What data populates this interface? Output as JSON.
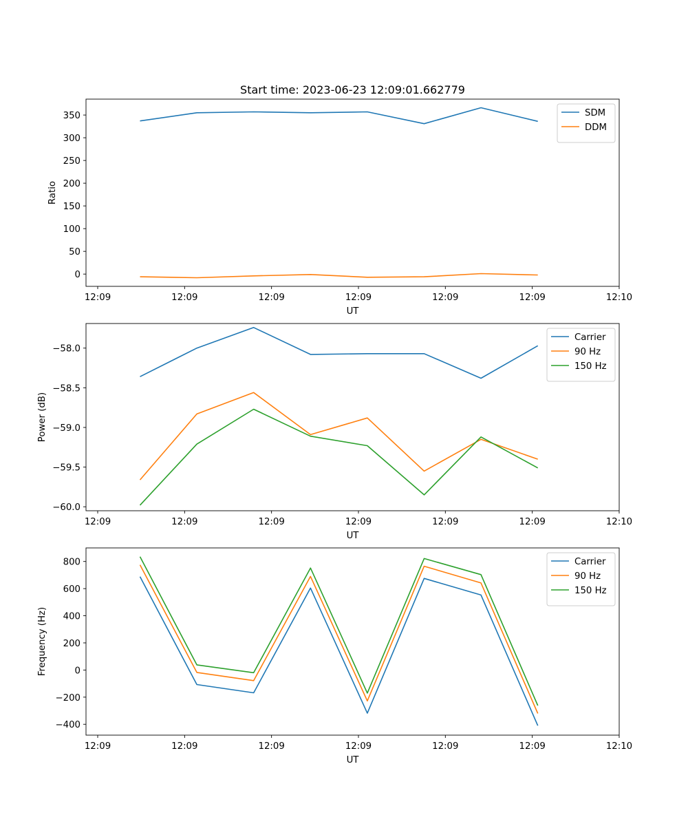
{
  "title": "Start time: 2023-06-23 12:09:01.662779",
  "colors": {
    "blue": "#1f77b4",
    "orange": "#ff7f0e",
    "green": "#2ca02c"
  },
  "chart_data": [
    {
      "type": "line",
      "xlabel": "UT",
      "ylabel": "Ratio",
      "xticks": [
        "12:09",
        "12:09",
        "12:09",
        "12:09",
        "12:09",
        "12:09",
        "12:10"
      ],
      "yticks": [
        0,
        50,
        100,
        150,
        200,
        250,
        300,
        350
      ],
      "ylim": [
        -27,
        385
      ],
      "legend_position": "top-right",
      "series": [
        {
          "name": "SDM",
          "color": "#1f77b4",
          "values": [
            337,
            355,
            357,
            355,
            357,
            331,
            366,
            336
          ]
        },
        {
          "name": "DDM",
          "color": "#ff7f0e",
          "values": [
            -6,
            -8,
            -4,
            -1,
            -7,
            -6,
            1,
            -2
          ]
        }
      ]
    },
    {
      "type": "line",
      "xlabel": "UT",
      "ylabel": "Power (dB)",
      "xticks": [
        "12:09",
        "12:09",
        "12:09",
        "12:09",
        "12:09",
        "12:09",
        "12:10"
      ],
      "yticks": [
        -60.0,
        -59.5,
        -59.0,
        -58.5,
        -58.0
      ],
      "ytick_labels": [
        "−60.0",
        "−59.5",
        "−59.0",
        "−58.5",
        "−58.0"
      ],
      "ylim": [
        -60.05,
        -57.69
      ],
      "legend_position": "top-right",
      "series": [
        {
          "name": "Carrier",
          "color": "#1f77b4",
          "values": [
            -58.36,
            -58.0,
            -57.74,
            -58.08,
            -58.07,
            -58.07,
            -58.38,
            -57.97
          ]
        },
        {
          "name": "90 Hz",
          "color": "#ff7f0e",
          "values": [
            -59.66,
            -58.83,
            -58.56,
            -59.09,
            -58.88,
            -59.55,
            -59.15,
            -59.4
          ]
        },
        {
          "name": "150 Hz",
          "color": "#2ca02c",
          "values": [
            -59.98,
            -59.21,
            -58.77,
            -59.11,
            -59.23,
            -59.85,
            -59.12,
            -59.51
          ]
        }
      ]
    },
    {
      "type": "line",
      "xlabel": "UT",
      "ylabel": "Frequency (Hz)",
      "xticks": [
        "12:09",
        "12:09",
        "12:09",
        "12:09",
        "12:09",
        "12:09",
        "12:10"
      ],
      "yticks": [
        -400,
        -200,
        0,
        200,
        400,
        600,
        800
      ],
      "ytick_labels": [
        "−400",
        "−200",
        "0",
        "200",
        "400",
        "600",
        "800"
      ],
      "ylim": [
        -480,
        900
      ],
      "legend_position": "top-right",
      "series": [
        {
          "name": "Carrier",
          "color": "#1f77b4",
          "values": [
            688,
            -107,
            -168,
            604,
            -318,
            675,
            553,
            -410
          ]
        },
        {
          "name": "90 Hz",
          "color": "#ff7f0e",
          "values": [
            775,
            -18,
            -78,
            690,
            -228,
            765,
            642,
            -320
          ]
        },
        {
          "name": "150 Hz",
          "color": "#2ca02c",
          "values": [
            835,
            38,
            -20,
            752,
            -170,
            822,
            703,
            -262
          ]
        }
      ]
    }
  ]
}
